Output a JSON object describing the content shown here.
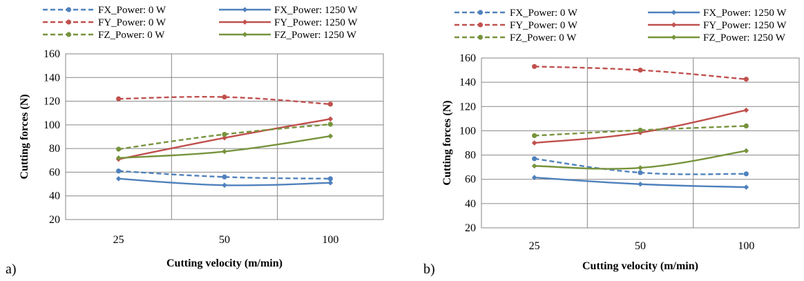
{
  "chart_data": [
    {
      "type": "line",
      "panel_label": "a)",
      "xlabel": "Cutting velocity (m/min)",
      "ylabel": "Cutting forces (N)",
      "categories": [
        "25",
        "50",
        "100"
      ],
      "ylim": [
        20,
        160
      ],
      "yticks": [
        "20",
        "40",
        "60",
        "80",
        "100",
        "120",
        "140",
        "160"
      ],
      "grid": true,
      "legend_position": "top",
      "series": [
        {
          "name": "FX_Power: 0 W",
          "color": "#4F81BD",
          "dash": true,
          "marker": "circle",
          "values": [
            61,
            56,
            54.5
          ]
        },
        {
          "name": "FX_Power: 1250 W",
          "color": "#4F81BD",
          "dash": false,
          "marker": "diamond",
          "values": [
            54.5,
            49,
            51
          ]
        },
        {
          "name": "FY_Power: 0 W",
          "color": "#C0504D",
          "dash": true,
          "marker": "circle",
          "values": [
            122,
            123.5,
            117.5
          ]
        },
        {
          "name": "FY_Power: 1250 W",
          "color": "#C0504D",
          "dash": false,
          "marker": "diamond",
          "values": [
            71,
            89,
            105
          ]
        },
        {
          "name": "FZ_Power: 0 W",
          "color": "#77933C",
          "dash": true,
          "marker": "circle",
          "values": [
            79.5,
            92,
            100.5
          ]
        },
        {
          "name": "FZ_Power: 1250 W",
          "color": "#77933C",
          "dash": false,
          "marker": "diamond",
          "values": [
            72,
            77.5,
            90.5
          ]
        }
      ]
    },
    {
      "type": "line",
      "panel_label": "b)",
      "xlabel": "Cutting velocity (m/min)",
      "ylabel": "Cutting forces (N)",
      "categories": [
        "25",
        "50",
        "100"
      ],
      "ylim": [
        20,
        160
      ],
      "yticks": [
        "20",
        "40",
        "60",
        "80",
        "100",
        "120",
        "140",
        "160"
      ],
      "grid": true,
      "legend_position": "top",
      "series": [
        {
          "name": "FX_Power: 0 W",
          "color": "#4F81BD",
          "dash": true,
          "marker": "circle",
          "values": [
            77,
            65.5,
            64.5
          ]
        },
        {
          "name": "FX_Power: 1250 W",
          "color": "#4F81BD",
          "dash": false,
          "marker": "diamond",
          "values": [
            61.5,
            56,
            53.5
          ]
        },
        {
          "name": "FY_Power: 0 W",
          "color": "#C0504D",
          "dash": true,
          "marker": "circle",
          "values": [
            153,
            150,
            142.5
          ]
        },
        {
          "name": "FY_Power: 1250 W",
          "color": "#C0504D",
          "dash": false,
          "marker": "diamond",
          "values": [
            90,
            98.5,
            117
          ]
        },
        {
          "name": "FZ_Power: 0 W",
          "color": "#77933C",
          "dash": true,
          "marker": "circle",
          "values": [
            96,
            100.5,
            104
          ]
        },
        {
          "name": "FZ_Power: 1250 W",
          "color": "#77933C",
          "dash": false,
          "marker": "diamond",
          "values": [
            71,
            69.5,
            83.5
          ]
        }
      ]
    }
  ]
}
